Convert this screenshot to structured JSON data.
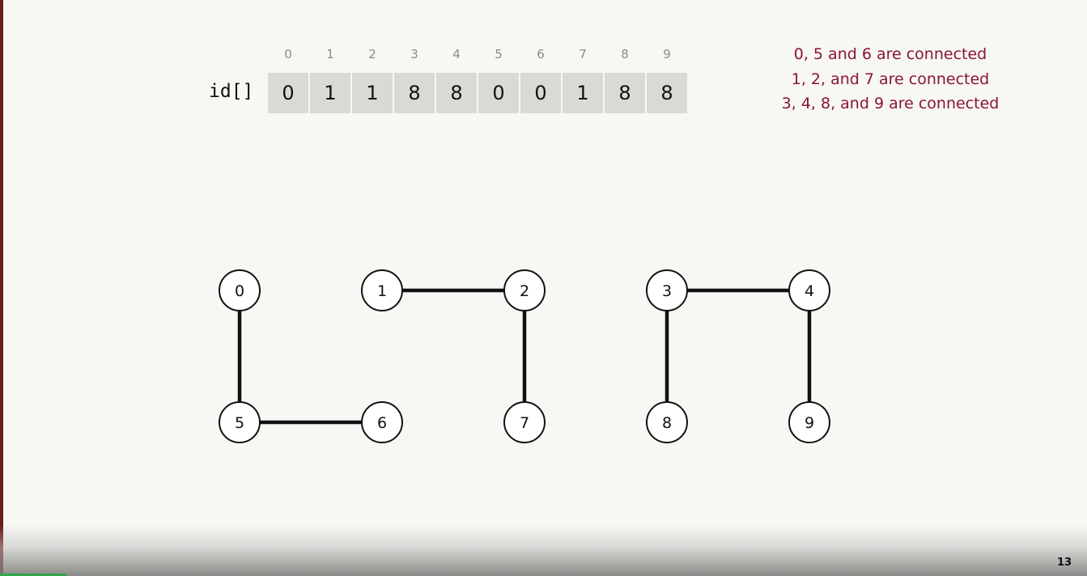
{
  "array": {
    "label": "id[]",
    "indices": [
      "0",
      "1",
      "2",
      "3",
      "4",
      "5",
      "6",
      "7",
      "8",
      "9"
    ],
    "values": [
      "0",
      "1",
      "1",
      "8",
      "8",
      "0",
      "0",
      "1",
      "8",
      "8"
    ]
  },
  "notes": [
    "0, 5 and 6 are connected",
    "1, 2, and 7 are connected",
    "3, 4, 8, and 9 are connected"
  ],
  "graph": {
    "nodes": [
      "0",
      "1",
      "2",
      "3",
      "4",
      "5",
      "6",
      "7",
      "8",
      "9"
    ],
    "edges": [
      [
        "0",
        "5"
      ],
      [
        "5",
        "6"
      ],
      [
        "1",
        "2"
      ],
      [
        "2",
        "7"
      ],
      [
        "3",
        "4"
      ],
      [
        "3",
        "8"
      ],
      [
        "4",
        "9"
      ]
    ]
  },
  "page_number": "13",
  "colors": {
    "note_text": "#8a1530",
    "cell_bg": "#d9d9d6"
  }
}
